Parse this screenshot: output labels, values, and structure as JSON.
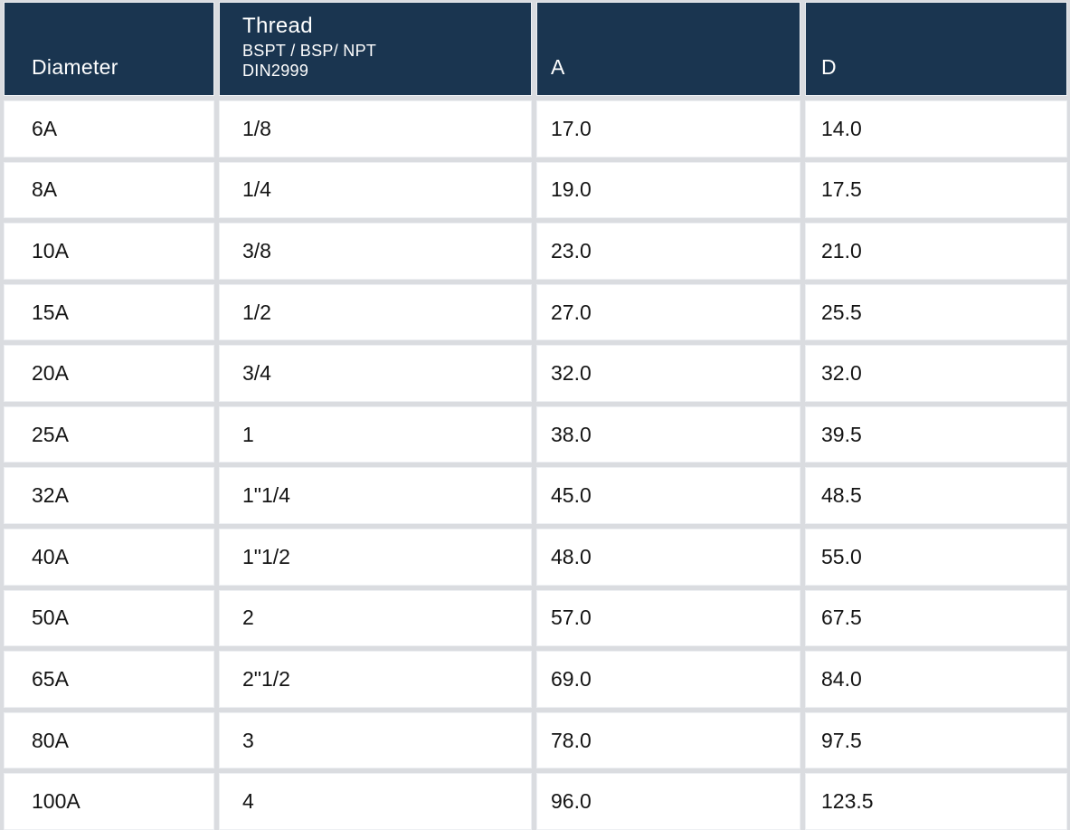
{
  "table": {
    "columns": [
      {
        "key": "diameter",
        "label": "Diameter"
      },
      {
        "key": "thread",
        "label": "Thread",
        "sublabel_line1": "BSPT / BSP/ NPT",
        "sublabel_line2": "DIN2999"
      },
      {
        "key": "a",
        "label": "A"
      },
      {
        "key": "d",
        "label": "D"
      }
    ],
    "rows": [
      {
        "diameter": "6A",
        "thread": "1/8",
        "a": "17.0",
        "d": "14.0"
      },
      {
        "diameter": "8A",
        "thread": "1/4",
        "a": "19.0",
        "d": "17.5"
      },
      {
        "diameter": "10A",
        "thread": "3/8",
        "a": "23.0",
        "d": "21.0"
      },
      {
        "diameter": "15A",
        "thread": "1/2",
        "a": "27.0",
        "d": "25.5"
      },
      {
        "diameter": "20A",
        "thread": "3/4",
        "a": "32.0",
        "d": "32.0"
      },
      {
        "diameter": "25A",
        "thread": "1",
        "a": "38.0",
        "d": "39.5"
      },
      {
        "diameter": "32A",
        "thread": "1\"1/4",
        "a": "45.0",
        "d": "48.5"
      },
      {
        "diameter": "40A",
        "thread": "1\"1/2",
        "a": "48.0",
        "d": "55.0"
      },
      {
        "diameter": "50A",
        "thread": "2",
        "a": "57.0",
        "d": "67.5"
      },
      {
        "diameter": "65A",
        "thread": "2\"1/2",
        "a": "69.0",
        "d": "84.0"
      },
      {
        "diameter": "80A",
        "thread": "3",
        "a": "78.0",
        "d": "97.5"
      },
      {
        "diameter": "100A",
        "thread": "4",
        "a": "96.0",
        "d": "123.5"
      }
    ],
    "colors": {
      "header_bg": "#1a3550",
      "header_text": "#ffffff",
      "cell_bg": "#ffffff",
      "cell_text": "#141414",
      "gutter": "#dadce0"
    }
  }
}
